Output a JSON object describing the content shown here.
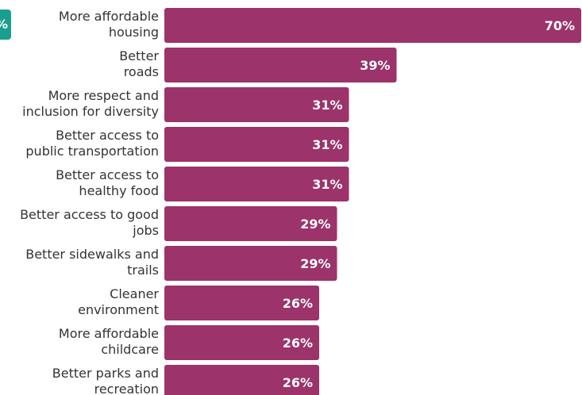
{
  "colors": {
    "bar": "#9c336a",
    "badge": "#1a9e8f",
    "label_text": "#333333",
    "value_text": "#ffffff"
  },
  "badge": {
    "icon": "percent-badge-icon",
    "text": "%"
  },
  "chart_data": {
    "type": "bar",
    "orientation": "horizontal",
    "categories": [
      [
        "More affordable",
        "housing"
      ],
      [
        "Better",
        "roads"
      ],
      [
        "More respect and",
        "inclusion for diversity"
      ],
      [
        "Better access to",
        "public transportation"
      ],
      [
        "Better access to",
        "healthy food"
      ],
      [
        "Better access to good",
        "jobs"
      ],
      [
        "Better sidewalks and",
        "trails"
      ],
      [
        "Cleaner",
        "environment"
      ],
      [
        "More affordable",
        "childcare"
      ],
      [
        "Better parks and",
        "recreation"
      ]
    ],
    "values": [
      70,
      39,
      31,
      31,
      31,
      29,
      29,
      26,
      26,
      26
    ],
    "value_labels": [
      "70%",
      "39%",
      "31%",
      "31%",
      "31%",
      "29%",
      "29%",
      "26%",
      "26%",
      "26%"
    ],
    "xlim": [
      0,
      70
    ],
    "grid": false,
    "legend": "none"
  }
}
